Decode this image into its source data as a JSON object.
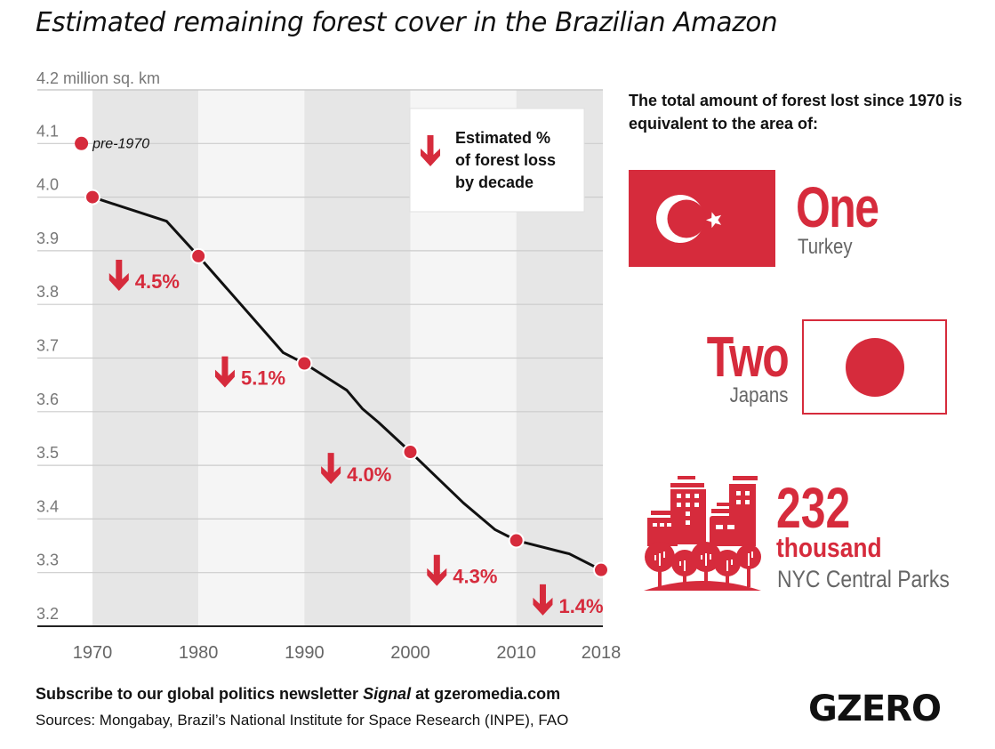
{
  "title": "Estimated remaining forest cover in the Brazilian Amazon",
  "chart_data": {
    "type": "line",
    "title": "Estimated remaining forest cover in the Brazilian Amazon",
    "ylabel": "million sq. km",
    "y_unit_label": "4.2 million sq. km",
    "xlabel": "",
    "ylim": [
      3.2,
      4.2
    ],
    "xlim": [
      1970,
      2018
    ],
    "y_ticks": [
      "4.1",
      "4.0",
      "3.9",
      "3.8",
      "3.7",
      "3.6",
      "3.5",
      "3.4",
      "3.3",
      "3.2"
    ],
    "y_tick_values": [
      4.1,
      4.0,
      3.9,
      3.8,
      3.7,
      3.6,
      3.5,
      3.4,
      3.3,
      3.2
    ],
    "x_ticks": [
      "1970",
      "1980",
      "1990",
      "2000",
      "2010",
      "2018"
    ],
    "x_tick_values": [
      1970,
      1980,
      1990,
      2000,
      2010,
      2018
    ],
    "grid": true,
    "decade_bands": [
      [
        1970,
        1980
      ],
      [
        1990,
        2000
      ],
      [
        2010,
        2018
      ]
    ],
    "series": [
      {
        "name": "Remaining forest cover",
        "line": [
          [
            1970,
            4.0
          ],
          [
            1977,
            3.955
          ],
          [
            1980,
            3.89
          ],
          [
            1988,
            3.71
          ],
          [
            1990,
            3.69
          ],
          [
            1994,
            3.64
          ],
          [
            1995.5,
            3.605
          ],
          [
            1997,
            3.58
          ],
          [
            2000,
            3.525
          ],
          [
            2005,
            3.43
          ],
          [
            2008,
            3.38
          ],
          [
            2010,
            3.36
          ],
          [
            2015,
            3.335
          ],
          [
            2018,
            3.305
          ]
        ],
        "markers": [
          {
            "x": 1970,
            "y": 4.0
          },
          {
            "x": 1980,
            "y": 3.89
          },
          {
            "x": 1990,
            "y": 3.69
          },
          {
            "x": 2000,
            "y": 3.525
          },
          {
            "x": 2010,
            "y": 3.36
          },
          {
            "x": 2018,
            "y": 3.305
          }
        ]
      }
    ],
    "pre_1970": {
      "label": "pre-1970",
      "x": 1969,
      "y": 4.1
    },
    "decade_losses": [
      {
        "decade": "1970s",
        "label": "4.5%",
        "value": 4.5,
        "x": 1972.5,
        "y": 3.85
      },
      {
        "decade": "1980s",
        "label": "5.1%",
        "value": 5.1,
        "x": 1982.5,
        "y": 3.67
      },
      {
        "decade": "1990s",
        "label": "4.0%",
        "value": 4.0,
        "x": 1992.5,
        "y": 3.49
      },
      {
        "decade": "2000s",
        "label": "4.3%",
        "value": 4.3,
        "x": 2002.5,
        "y": 3.3
      },
      {
        "decade": "2010s",
        "label": "1.4%",
        "value": 1.4,
        "x": 2012.5,
        "y": 3.245
      }
    ],
    "legend": {
      "position": "top-right",
      "lines": [
        "Estimated %",
        "of forest loss",
        "by decade"
      ]
    }
  },
  "side": {
    "intro": "The total amount of forest lost since 1970 is equivalent to the area of:",
    "turkey": {
      "count": "One",
      "label": "Turkey"
    },
    "japan": {
      "count": "Two",
      "label": "Japans"
    },
    "parks": {
      "count": "232",
      "unit": "thousand",
      "label": "NYC Central Parks"
    }
  },
  "footer": {
    "subscribe_prefix": "Subscribe to our global politics newsletter ",
    "subscribe_italic": "Signal",
    "subscribe_suffix": " at gzeromedia.com",
    "sources": "Sources: Mongabay, Brazil’s National Institute for Space Research (INPE), FAO",
    "logo": "GZERO"
  },
  "colors": {
    "accent": "#d62b3c",
    "band_dark": "#e6e6e6",
    "band_light": "#f5f5f5",
    "line": "#111111",
    "grid": "#cccccc"
  }
}
